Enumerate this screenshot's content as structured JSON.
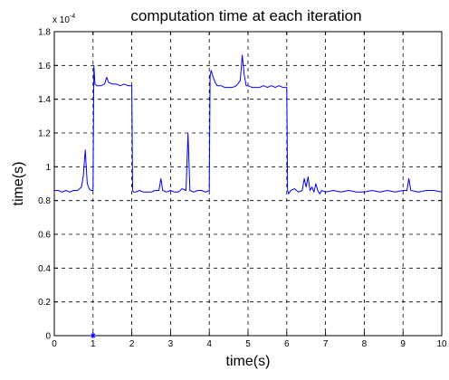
{
  "chart_data": {
    "type": "line",
    "title": "computation time at each iteration",
    "xlabel": "time(s)",
    "ylabel": "time(s)",
    "y_exponent_label": "x 10",
    "y_exponent_power": "-4",
    "xlim": [
      0,
      10
    ],
    "ylim": [
      0,
      1.8
    ],
    "x_ticks": [
      0,
      1,
      2,
      3,
      4,
      5,
      6,
      7,
      8,
      9,
      10
    ],
    "y_ticks": [
      0,
      0.2,
      0.4,
      0.6,
      0.8,
      1,
      1.2,
      1.4,
      1.6,
      1.8
    ],
    "x_tick_labels": [
      "0",
      "1",
      "2",
      "3",
      "4",
      "5",
      "6",
      "7",
      "8",
      "9",
      "10"
    ],
    "y_tick_labels": [
      "0",
      "0.2",
      "0.4",
      "0.6",
      "0.8",
      "1",
      "1.2",
      "1.4",
      "1.6",
      "1.8"
    ],
    "grid": true,
    "line_color": "#0000ff",
    "marker": {
      "x": 1.0,
      "y": 0,
      "symbol": "star",
      "color": "#0000ff"
    },
    "series": [
      {
        "x": [
          0.0,
          0.1,
          0.2,
          0.3,
          0.4,
          0.5,
          0.6,
          0.7,
          0.75,
          0.8,
          0.85,
          0.9,
          0.95,
          1.0,
          1.02,
          1.05,
          1.1,
          1.2,
          1.3,
          1.35,
          1.4,
          1.5,
          1.6,
          1.7,
          1.8,
          1.9,
          2.0,
          2.02,
          2.05,
          2.1,
          2.2,
          2.3,
          2.4,
          2.5,
          2.6,
          2.7,
          2.75,
          2.8,
          2.9,
          3.0,
          3.1,
          3.2,
          3.3,
          3.4,
          3.45,
          3.5,
          3.6,
          3.7,
          3.8,
          3.9,
          4.0,
          4.02,
          4.05,
          4.1,
          4.15,
          4.2,
          4.3,
          4.4,
          4.5,
          4.6,
          4.7,
          4.8,
          4.85,
          4.9,
          4.95,
          5.0,
          5.1,
          5.2,
          5.3,
          5.4,
          5.5,
          5.6,
          5.7,
          5.8,
          5.9,
          6.0,
          6.02,
          6.05,
          6.1,
          6.2,
          6.3,
          6.4,
          6.45,
          6.5,
          6.55,
          6.6,
          6.65,
          6.7,
          6.75,
          6.8,
          6.85,
          6.9,
          7.0,
          7.2,
          7.4,
          7.6,
          7.8,
          8.0,
          8.2,
          8.4,
          8.6,
          8.8,
          9.0,
          9.1,
          9.15,
          9.2,
          9.4,
          9.6,
          9.8,
          10.0
        ],
        "y": [
          0.86,
          0.86,
          0.85,
          0.86,
          0.85,
          0.86,
          0.86,
          0.88,
          0.95,
          1.1,
          0.9,
          0.87,
          0.86,
          0.86,
          1.6,
          1.49,
          1.48,
          1.48,
          1.49,
          1.53,
          1.5,
          1.49,
          1.49,
          1.48,
          1.49,
          1.48,
          1.48,
          0.86,
          0.85,
          0.85,
          0.86,
          0.85,
          0.85,
          0.85,
          0.86,
          0.86,
          0.93,
          0.86,
          0.85,
          0.86,
          0.85,
          0.85,
          0.87,
          0.86,
          1.2,
          0.86,
          0.85,
          0.86,
          0.86,
          0.85,
          0.86,
          1.54,
          1.57,
          1.53,
          1.5,
          1.48,
          1.48,
          1.47,
          1.47,
          1.47,
          1.48,
          1.51,
          1.66,
          1.55,
          1.48,
          1.48,
          1.47,
          1.47,
          1.47,
          1.48,
          1.47,
          1.48,
          1.47,
          1.48,
          1.47,
          1.47,
          0.86,
          0.84,
          0.86,
          0.87,
          0.85,
          0.86,
          0.93,
          0.88,
          0.94,
          0.86,
          0.88,
          0.85,
          0.9,
          0.86,
          0.84,
          0.86,
          0.85,
          0.86,
          0.85,
          0.86,
          0.85,
          0.85,
          0.86,
          0.85,
          0.86,
          0.85,
          0.86,
          0.86,
          0.93,
          0.86,
          0.85,
          0.86,
          0.86,
          0.85
        ]
      }
    ]
  }
}
